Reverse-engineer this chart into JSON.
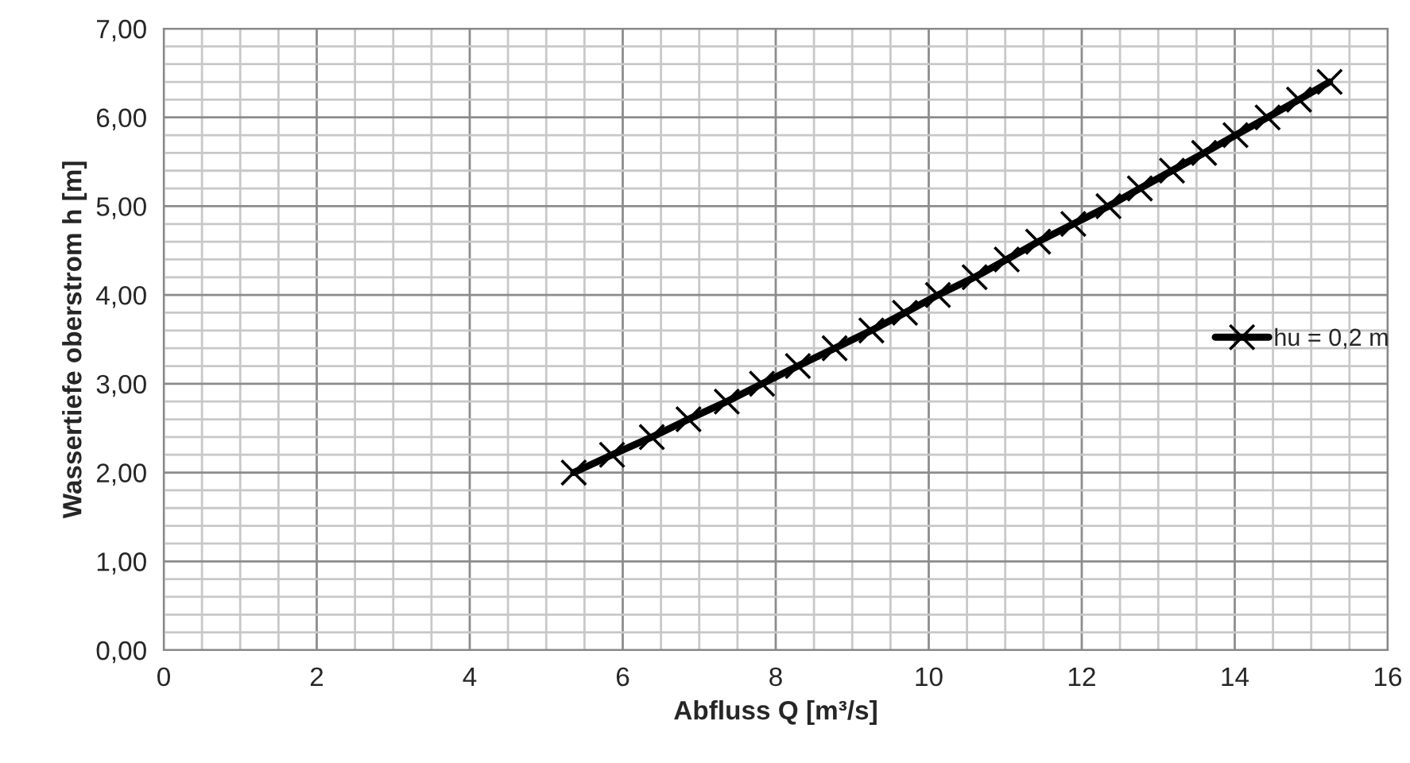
{
  "chart_data": {
    "type": "line",
    "xlabel": "Abfluss Q [m³/s]",
    "ylabel": "Wassertiefe oberstrom h [m]",
    "x": [
      5.36,
      5.86,
      6.38,
      6.86,
      7.36,
      7.82,
      8.29,
      8.77,
      9.25,
      9.69,
      10.12,
      10.6,
      11.02,
      11.43,
      11.89,
      12.35,
      12.76,
      13.18,
      13.6,
      14.01,
      14.43,
      14.84,
      15.24
    ],
    "series": [
      {
        "name": "hu = 0,2 m",
        "color": "#000000",
        "values": [
          2.0,
          2.2,
          2.4,
          2.6,
          2.8,
          3.0,
          3.2,
          3.4,
          3.6,
          3.8,
          4.0,
          4.2,
          4.4,
          4.6,
          4.8,
          5.0,
          5.2,
          5.4,
          5.6,
          5.8,
          6.0,
          6.2,
          6.4
        ]
      }
    ],
    "xlim": [
      0,
      16
    ],
    "xticks": [
      0,
      2,
      4,
      6,
      8,
      10,
      12,
      14,
      16
    ],
    "ylim": [
      0,
      7
    ],
    "yticks": [
      {
        "value": 0,
        "label": "0,00"
      },
      {
        "value": 1,
        "label": "1,00"
      },
      {
        "value": 2,
        "label": "2,00"
      },
      {
        "value": 3,
        "label": "3,00"
      },
      {
        "value": 4,
        "label": "4,00"
      },
      {
        "value": 5,
        "label": "5,00"
      },
      {
        "value": 6,
        "label": "6,00"
      },
      {
        "value": 7,
        "label": "7,00"
      }
    ],
    "grid": true,
    "legend": "right",
    "marker": "cross",
    "line_style": "solid"
  }
}
